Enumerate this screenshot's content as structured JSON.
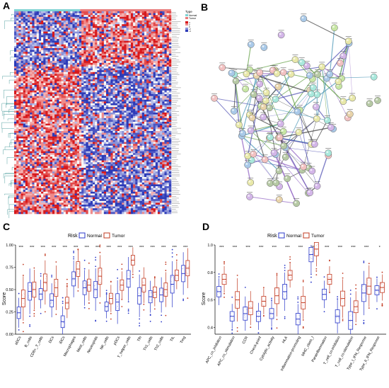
{
  "panels": {
    "a": "A",
    "b": "B",
    "c": "C",
    "d": "D"
  },
  "heatmap": {
    "legend_title": "Type",
    "groups": [
      "Normal",
      "Tumor"
    ],
    "scale": [
      "4",
      "2",
      "0",
      "-2",
      "-4"
    ],
    "colors": {
      "high": "#d7191c",
      "mid": "#f7f7f7",
      "low": "#2c3bb8",
      "normal_bar": "#7fd3d3",
      "tumor_bar": "#e87b7b"
    }
  },
  "network": {
    "node_colors": [
      "#a9c9e8",
      "#c7e6a4",
      "#e8d3a9",
      "#d3b6e8",
      "#a9e8dc",
      "#f2c1c1",
      "#e8e8a9",
      "#b6c9a4"
    ],
    "edge_colors": [
      "#4b4bb0",
      "#5a9a3a",
      "#333333",
      "#8f5fc2",
      "#3c8fb0"
    ]
  },
  "legend": {
    "title": "Risk",
    "normal": "Normal",
    "tumor": "Tumor",
    "normal_color": "#2b39c9",
    "tumor_color": "#c23b22"
  },
  "chart_data": [
    {
      "type": "box",
      "panel": "C",
      "ylabel": "Score",
      "ylim": [
        0,
        1.0
      ],
      "yticks": [
        "0.00",
        "0.25",
        "0.50",
        "0.75",
        "1.00"
      ],
      "categories": [
        "aDCs",
        "B_cells",
        "CD8+_T_cells",
        "DCs",
        "iDCs",
        "Macrophages",
        "Mast_cells",
        "Neutrophils",
        "NK_cells",
        "pDCs",
        "T_helper_cells",
        "Tfh",
        "Th1_cells",
        "Th2_cells",
        "TIL",
        "Treg"
      ],
      "significance": [
        "***",
        "***",
        "***",
        "***",
        "***",
        "***",
        "***",
        "***",
        "***",
        "***",
        "***",
        "***",
        "***",
        "***",
        "***",
        "***"
      ],
      "series": [
        {
          "name": "Normal",
          "median": [
            0.24,
            0.48,
            0.45,
            0.38,
            0.14,
            0.62,
            0.52,
            0.5,
            0.31,
            0.36,
            0.62,
            0.43,
            0.42,
            0.44,
            0.56,
            0.68
          ]
        },
        {
          "name": "Tumor",
          "median": [
            0.4,
            0.5,
            0.58,
            0.52,
            0.35,
            0.73,
            0.55,
            0.65,
            0.4,
            0.55,
            0.83,
            0.55,
            0.47,
            0.5,
            0.66,
            0.74
          ]
        }
      ]
    },
    {
      "type": "box",
      "panel": "D",
      "ylabel": "Score",
      "ylim": [
        0.35,
        1.0
      ],
      "yticks": [
        "0.4",
        "0.6",
        "0.8",
        "1.0"
      ],
      "categories": [
        "APC_co_inhibition",
        "APC_co_stimulation",
        "CCR",
        "Check-point",
        "Cytolytic_activity",
        "HLA",
        "Inflammation-promoting",
        "MHC_class_I",
        "Parainflammation",
        "T_cell_co-inhibition",
        "T_cell_co-stimulation",
        "Type_I_IFN_Response",
        "Type_II_IFN_Response"
      ],
      "significance": [
        "***",
        "***",
        "***",
        "***",
        "***",
        "***",
        "***",
        "***",
        "***",
        "***",
        "***",
        "***",
        "*"
      ],
      "series": [
        {
          "name": "Normal",
          "median": [
            0.66,
            0.48,
            0.5,
            0.48,
            0.5,
            0.66,
            0.46,
            0.93,
            0.64,
            0.48,
            0.45,
            0.65,
            0.67
          ]
        },
        {
          "name": "Tumor",
          "median": [
            0.75,
            0.6,
            0.54,
            0.59,
            0.63,
            0.78,
            0.58,
            0.97,
            0.75,
            0.61,
            0.55,
            0.7,
            0.69
          ]
        }
      ]
    }
  ]
}
